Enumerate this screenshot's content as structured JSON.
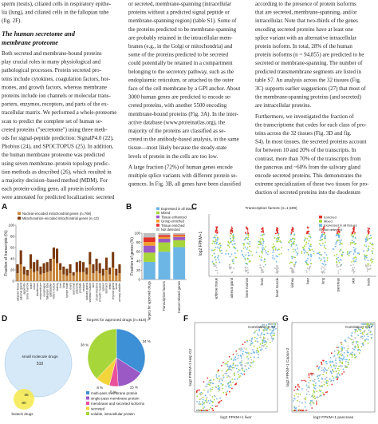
{
  "column_1": {
    "intro": [
      "sperm (testis), ciliated cells in respiratory epithe-",
      "lia (lung), and ciliated cells in the fallopian tube",
      "(fig. 2F)."
    ],
    "heading": [
      "The human secretome and",
      "membrane proteome"
    ],
    "body": [
      "Both secreted and membrane-bound proteins",
      "play crucial roles in many physiological and",
      "pathological processes. Protein secreted pro-",
      "teins include cytokines, coagulation factors, hor-",
      "mones, and growth factors, whereas membrane",
      "proteins include ion channels or molecular trans-",
      "porters, enzymes, receptors, and parts of the ex-",
      "tracellular matrix. We performed a whole-proteome",
      "scan to predict the complete set of human se-",
      "creted proteins (\"secretome\") using three meth-",
      "ods for signal-peptide prediction: SignalP4.0 (22),",
      "Phobius (24), and SPOCTOPUS (25). In addition,",
      "the human membrane proteome was predicted",
      "using seven membrane–protein topology predic-",
      "tion methods as described (26), which resulted in",
      "a majority decision–based method (MDM). For",
      "each protein-coding gene, all protein isoforms",
      "were annotated for predicted localization: secreted"
    ]
  },
  "column_2": {
    "lines": [
      "or secreted, membrane-spanning (intracellular",
      "proteins without a predicted signal peptide or",
      "membrane-spanning region) (table S1). Some of",
      "the proteins predicted to be membrane-spanning",
      "are probably retained in the intracellular mem-",
      "branes (e.g., in the Golgi or mitochondria) and",
      "some of the proteins predicted to be secreted",
      "could potentially be retained in a compartment",
      "belonging to the secretory pathway, such as the",
      "endoplasmic reticulum, or attached to the outer",
      "face of the cell membrane by a GPI anchor. About",
      "3000 human genes are predicted to encode se-",
      "creted proteins, with another 5500 encoding",
      "membrane-bound proteins (Fig. 3A). In the inter-",
      "active database (www.proteinatlas.org), the",
      "majority of the proteins are classified as se-",
      "creted in the antibody-based analysis, in the same",
      "tissue—most likely because the steady-state",
      "levels of protein in the cells are too low.",
      "A large fraction (72%) of human genes encode",
      "multiple splice variants with different protein se-",
      "quences. In Fig. 3B, all genes have been classified"
    ]
  },
  "column_3": {
    "lines": [
      "according to the presence of protein isoforms",
      "that are secreted, membrane-spanning, and/or",
      "intracellular. Note that two-thirds of the genes",
      "encoding secreted proteins have at least one",
      "splice variant with an alternative intracellular",
      "protein isoform. In total, 28% of the human",
      "protein isoforms (n = 94,855) are predicted to be",
      "secreted or membrane-spanning. The number of",
      "predicted transmembrane segments are listed in",
      "table S7. An analysis across the 32 tissues (Fig.",
      "3C) supports earlier suggestions (27) that most of",
      "the membrane-spanning proteins (and secreted)",
      "are intracellular proteins.",
      "Furthermore, we investigated the fraction of",
      "the transcriptome that codes for each class of pro-",
      "teins across the 32 tissues (Fig. 3D and fig.",
      "S4). In most tissues, the secreted proteins account",
      "for between 10 and 20% of the transcripts. In",
      "contrast, more than 70% of the transcripts from",
      "the pancreas and ~60% from the salivary gland",
      "encode secreted proteins. This demonstrates the",
      "extreme specialization of these two tissues for pro-",
      "duction of secreted proteins into the duodenum"
    ]
  },
  "chart_data": [
    {
      "type": "bar",
      "stacked": true,
      "panel": "A",
      "y_label": "Fraction of transcripts (%)",
      "categories": [
        "adipose tissue",
        "adrenal gland",
        "appendix",
        "bone marrow",
        "brain",
        "colon",
        "duodenum",
        "endometrium",
        "esophagus",
        "fallopian tube",
        "gallbladder",
        "heart muscle",
        "kidney",
        "liver",
        "lung",
        "lymph node",
        "ovary",
        "pancreas",
        "placenta",
        "prostate",
        "rectum",
        "salivary gland",
        "skeletal muscle",
        "skin",
        "small intestine",
        "smooth muscle",
        "spleen",
        "stomach",
        "testis",
        "thyroid gland",
        "tonsil",
        "urinary bladder"
      ],
      "series": [
        {
          "name": "Nuclear-encoded mitochondrial genes (n=768)",
          "color": "#c8873a",
          "values": [
            14,
            30,
            12,
            10,
            22,
            16,
            18,
            12,
            14,
            16,
            18,
            40,
            32,
            20,
            12,
            10,
            14,
            10,
            16,
            16,
            16,
            12,
            30,
            14,
            18,
            14,
            10,
            20,
            12,
            24,
            10,
            14
          ]
        },
        {
          "name": "Mitochondrion-encoded mitochondrial genes (n=13)",
          "color": "#7a3b10",
          "values": [
            16,
            25,
            14,
            10,
            26,
            18,
            20,
            14,
            18,
            18,
            22,
            20,
            26,
            12,
            14,
            12,
            16,
            6,
            18,
            20,
            18,
            12,
            22,
            16,
            22,
            18,
            12,
            22,
            12,
            28,
            12,
            16
          ]
        }
      ],
      "ylim": [
        0,
        100
      ],
      "yticks": [
        0,
        20,
        40,
        60,
        80,
        100
      ]
    },
    {
      "type": "bar",
      "stacked": true,
      "panel": "B",
      "y_label": "Fraction of genes (%)",
      "categories": [
        "Targets for approved drugs",
        "Transcription factors",
        "Cancer-related genes"
      ],
      "series": [
        {
          "name": "Expressed in all tissues",
          "color": "#6cb6e6",
          "values": [
            38,
            60,
            70
          ]
        },
        {
          "name": "Mixed",
          "color": "#a6d63a",
          "values": [
            20,
            20,
            15
          ]
        },
        {
          "name": "Tissue enhanced",
          "color": "#9b59c6",
          "values": [
            15,
            8,
            7
          ]
        },
        {
          "name": "Group enriched",
          "color": "#f39c2c",
          "values": [
            8,
            4,
            3
          ]
        },
        {
          "name": "Tissue enriched",
          "color": "#e0312b",
          "values": [
            10,
            4,
            2
          ]
        },
        {
          "name": "Not detected",
          "color": "#bdbdbd",
          "values": [
            9,
            4,
            3
          ]
        }
      ],
      "ylim": [
        0,
        100
      ],
      "yticks": [
        0,
        20,
        40,
        60,
        80,
        100
      ]
    },
    {
      "type": "pie",
      "panel": "E",
      "title": "Targets for approved drugs (n=618)",
      "categories": [
        "multi-pass membrane protein",
        "single-pass membrane protein",
        "membrane and secreted isoforms",
        "secreted",
        "soluble, intracellular protein"
      ],
      "values": [
        34,
        15,
        5,
        8,
        38
      ],
      "value_labels": [
        "34 %",
        "15 %",
        "5 %",
        "8 %",
        "38 %"
      ],
      "colors": [
        "#3d8fd6",
        "#9b59c6",
        "#e94f9b",
        "#f3d43a",
        "#a6d63a"
      ]
    }
  ],
  "figure": {
    "panel_c": {
      "letter": "C",
      "title": "Transcription factors (n=1,509)",
      "y_label": "log2 FPKM+1",
      "legend": [
        "Enriched",
        "Mixed",
        "Expressed in all tissues",
        "Not detected"
      ],
      "tissues": [
        "adipose tissue",
        "adrenal gland",
        "bone marrow",
        "brain",
        "heart muscle",
        "kidney",
        "liver",
        "lung",
        "pancreas",
        "skin",
        "testis"
      ]
    },
    "panel_d": {
      "letter": "D",
      "big_label": "small molecule drugs",
      "big_count": "510",
      "small_label": "biotech drugs",
      "overlap_count": "35",
      "small_count": "80"
    },
    "panel_f": {
      "letter": "F",
      "correlation": "Correlation: 0.79",
      "x_label": "log2 FPKM+1 liver",
      "y_label": "log2 FPKM+1 Hep G2"
    },
    "panel_g": {
      "letter": "G",
      "correlation": "Correlation: 0.67",
      "x_label": "log2 FPKM+1 pancreas",
      "y_label": "log2 FPKM+1 Capan-2"
    }
  }
}
